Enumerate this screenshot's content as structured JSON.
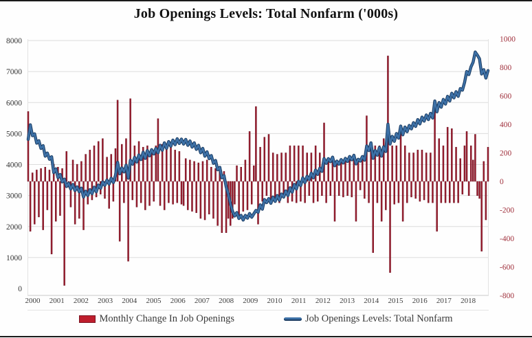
{
  "title": "Job Openings Levels: Total Nonfarm ('000s)",
  "legend": [
    {
      "label": "Monthly Change In Job Openings",
      "swatch": "bar-swatch",
      "color": "#be1e2d"
    },
    {
      "label": "Job Openings Levels: Total Nonfarm",
      "swatch": "line-swatch",
      "color": "#3e72a8"
    }
  ],
  "colors": {
    "bar_fill": "#9c1d2e",
    "bar_edge": "#6b1222",
    "line_outer": "#1c3d63",
    "line_inner": "#3e72a8",
    "grid": "#dcdcdc",
    "plot_edge": "#c8c8c8",
    "left_tick_text": "#333333",
    "right_tick_text": "#a0303c",
    "year_tick_text": "#3d3d3d",
    "title_text": "#111111"
  },
  "chart_data": {
    "type": "bar+line combo, dual axis",
    "title": "Job Openings Levels: Total Nonfarm ('000s)",
    "x_unit": "month",
    "x_start": "2000-12",
    "x_end": "2018-12",
    "x_tick_labels": [
      "2000",
      "2001",
      "2002",
      "2003",
      "2004",
      "2005",
      "2006",
      "2007",
      "2008",
      "2009",
      "2010",
      "2011",
      "2012",
      "2013",
      "2014",
      "2015",
      "2016",
      "2017",
      "2018"
    ],
    "left_axis": {
      "range": [
        0,
        8000
      ],
      "tick_step": 1000,
      "tick_labels": [
        "0",
        "1000",
        "2000",
        "3000",
        "4000",
        "5000",
        "6000",
        "7000",
        "8000"
      ],
      "series": "Job Openings Levels: Total Nonfarm"
    },
    "right_axis": {
      "range": [
        -800,
        1000
      ],
      "tick_step": 200,
      "tick_labels": [
        "1000",
        "800",
        "600",
        "400",
        "200",
        "0",
        "-200",
        "-400",
        "-600",
        "-800"
      ],
      "series": "Monthly Change In Job Openings"
    },
    "grid": true,
    "legend_position": "bottom",
    "series": [
      {
        "name": "Job Openings Levels: Total Nonfarm",
        "type": "line",
        "axis": "left",
        "color": "#3e72a8",
        "values": [
          4810,
          5280,
          4930,
          4990,
          4690,
          4770,
          4520,
          4610,
          4270,
          4370,
          4170,
          4250,
          3740,
          3860,
          3580,
          3680,
          3440,
          3530,
          3290,
          3400,
          3210,
          3360,
          3160,
          3280,
          3120,
          3240,
          2950,
          3140,
          3000,
          3190,
          3060,
          3270,
          3120,
          3340,
          3230,
          3440,
          3330,
          3500,
          3370,
          3560,
          3420,
          3650,
          4070,
          3700,
          3890,
          3760,
          3980,
          3560,
          4140,
          4010,
          4230,
          4080,
          4310,
          4160,
          4400,
          4200,
          4450,
          4280,
          4480,
          4340,
          4520,
          4380,
          4620,
          4460,
          4700,
          4520,
          4740,
          4590,
          4790,
          4640,
          4830,
          4680,
          4820,
          4660,
          4810,
          4620,
          4760,
          4560,
          4700,
          4490,
          4620,
          4380,
          4520,
          4270,
          4410,
          4190,
          4290,
          4040,
          4130,
          3830,
          3910,
          3570,
          3640,
          3290,
          3040,
          2740,
          2490,
          2340,
          2450,
          2260,
          2360,
          2210,
          2360,
          2270,
          2420,
          2300,
          2410,
          2520,
          2460,
          2700,
          2560,
          2870,
          2770,
          2900,
          2750,
          2950,
          2810,
          3000,
          2850,
          3050,
          2950,
          3150,
          3000,
          3250,
          3110,
          3360,
          3210,
          3460,
          3320,
          3570,
          3420,
          3620,
          3520,
          3720,
          3570,
          3820,
          3680,
          3880,
          3780,
          4190,
          4040,
          4190,
          4090,
          4240,
          3960,
          4110,
          4010,
          4160,
          4050,
          4200,
          4100,
          4260,
          4150,
          4300,
          4020,
          4170,
          4110,
          4260,
          4140,
          4600,
          4450,
          4700,
          4200,
          4450,
          4300,
          4550,
          4270,
          4570,
          4420,
          5300,
          4660,
          4910,
          4750,
          5000,
          4850,
          5240,
          4960,
          5210,
          5060,
          5260,
          5150,
          5350,
          5230,
          5450,
          5310,
          5530,
          5400,
          5600,
          5450,
          5650,
          5500,
          6050,
          5700,
          6000,
          5850,
          6100,
          5950,
          6200,
          6050,
          6300,
          6150,
          6350,
          6200,
          6450,
          6400,
          6650,
          7000,
          6900,
          7150,
          7300,
          7630,
          7530,
          7410,
          6920,
          7060,
          6790,
          7030
        ]
      },
      {
        "name": "Monthly Change In Job Openings",
        "type": "bar",
        "axis": "right",
        "color": "#9c1d2e",
        "values": [
          490,
          -350,
          60,
          -300,
          80,
          -250,
          90,
          -340,
          100,
          -200,
          80,
          -510,
          120,
          -280,
          100,
          -240,
          90,
          -730,
          210,
          -40,
          -180,
          150,
          -300,
          120,
          -260,
          140,
          -340,
          190,
          -160,
          220,
          -130,
          250,
          -110,
          280,
          -90,
          300,
          -120,
          170,
          -190,
          190,
          -140,
          230,
          570,
          -420,
          260,
          -150,
          300,
          -560,
          580,
          -130,
          250,
          -180,
          280,
          -150,
          240,
          -200,
          250,
          -170,
          200,
          -140,
          250,
          440,
          -170,
          260,
          -200,
          250,
          -150,
          240,
          -160,
          220,
          -150,
          210,
          -160,
          -170,
          160,
          -200,
          150,
          -210,
          140,
          -220,
          130,
          -260,
          140,
          -270,
          150,
          -230,
          100,
          -260,
          90,
          -310,
          80,
          -360,
          70,
          -360,
          -260,
          -310,
          -260,
          -160,
          110,
          -260,
          100,
          -210,
          150,
          -200,
          350,
          -160,
          110,
          525,
          -300,
          240,
          -140,
          310,
          -100,
          330,
          -150,
          200,
          -140,
          190,
          -150,
          200,
          -100,
          200,
          -150,
          250,
          -140,
          250,
          -150,
          250,
          -140,
          250,
          -150,
          200,
          -100,
          200,
          -150,
          250,
          -140,
          200,
          -100,
          410,
          -150,
          150,
          -100,
          150,
          -280,
          150,
          -100,
          150,
          -110,
          150,
          -100,
          160,
          -110,
          150,
          -280,
          150,
          -60,
          150,
          -120,
          460,
          -150,
          250,
          -500,
          250,
          -150,
          250,
          -280,
          300,
          -200,
          880,
          -640,
          250,
          -160,
          250,
          -150,
          390,
          -280,
          250,
          -150,
          200,
          -110,
          200,
          -120,
          220,
          -140,
          220,
          -130,
          200,
          -150,
          200,
          -150,
          550,
          -350,
          300,
          -150,
          250,
          -150,
          380,
          -150,
          370,
          -150,
          240,
          -150,
          160,
          -90,
          250,
          350,
          -100,
          250,
          150,
          330,
          -100,
          -120,
          -490,
          140,
          -270,
          240
        ]
      }
    ]
  }
}
